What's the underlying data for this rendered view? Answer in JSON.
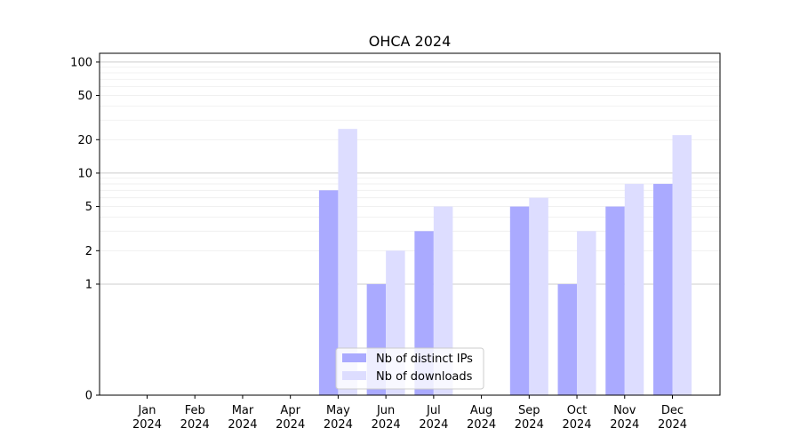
{
  "chart_data": {
    "type": "bar",
    "title": "OHCA 2024",
    "y_scale": "symlog",
    "ylim": [
      0,
      120
    ],
    "grid": "horizontal, major and minor",
    "legend_position": "lower center",
    "categories": [
      [
        "Jan",
        "2024"
      ],
      [
        "Feb",
        "2024"
      ],
      [
        "Mar",
        "2024"
      ],
      [
        "Apr",
        "2024"
      ],
      [
        "May",
        "2024"
      ],
      [
        "Jun",
        "2024"
      ],
      [
        "Jul",
        "2024"
      ],
      [
        "Aug",
        "2024"
      ],
      [
        "Sep",
        "2024"
      ],
      [
        "Oct",
        "2024"
      ],
      [
        "Nov",
        "2024"
      ],
      [
        "Dec",
        "2024"
      ]
    ],
    "yticks": [
      {
        "value": 0,
        "label": "0"
      },
      {
        "value": 1,
        "label": "1"
      },
      {
        "value": 2,
        "label": "2"
      },
      {
        "value": 5,
        "label": "5"
      },
      {
        "value": 10,
        "label": "10"
      },
      {
        "value": 20,
        "label": "20"
      },
      {
        "value": 50,
        "label": "50"
      },
      {
        "value": 100,
        "label": "100"
      }
    ],
    "series": [
      {
        "name": "Nb of distinct IPs",
        "color": "#aaaaff",
        "values": [
          0,
          0,
          0,
          0,
          7,
          1,
          3,
          0,
          5,
          1,
          5,
          8
        ]
      },
      {
        "name": "Nb of downloads",
        "color": "#ddddff",
        "values": [
          0,
          0,
          0,
          0,
          25,
          2,
          5,
          0,
          6,
          3,
          8,
          22
        ]
      }
    ]
  }
}
